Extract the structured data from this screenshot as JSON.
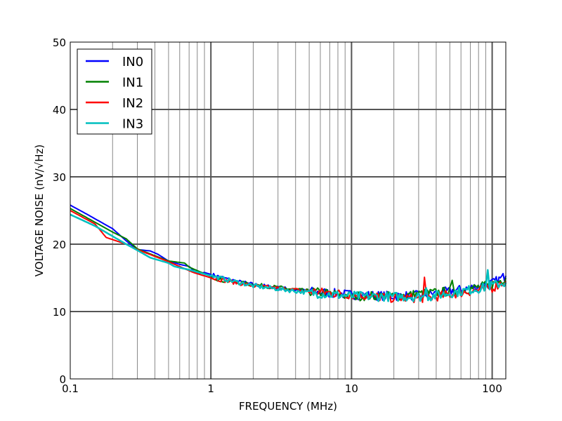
{
  "chart_data": {
    "type": "line",
    "title": "",
    "xlabel": "FREQUENCY (MHz)",
    "ylabel": "VOLTAGE NOISE (nV/√Hz)",
    "xscale": "log",
    "xlim": [
      0.1,
      125
    ],
    "ylim": [
      0,
      50
    ],
    "grid": true,
    "legend_position": "top-left",
    "x_ticks": [
      {
        "value": 0.1,
        "label": "0.1"
      },
      {
        "value": 1,
        "label": "1"
      },
      {
        "value": 10,
        "label": "10"
      },
      {
        "value": 100,
        "label": "100"
      }
    ],
    "y_ticks": [
      {
        "value": 0,
        "label": "0"
      },
      {
        "value": 10,
        "label": "10"
      },
      {
        "value": 20,
        "label": "20"
      },
      {
        "value": 30,
        "label": "30"
      },
      {
        "value": 40,
        "label": "40"
      },
      {
        "value": 50,
        "label": "50"
      }
    ],
    "series": [
      {
        "name": "IN0",
        "color": "#0000ff",
        "x": [
          0.1,
          0.13,
          0.2,
          0.25,
          0.3,
          0.37,
          0.42,
          0.5,
          0.6,
          0.7,
          0.8,
          0.9,
          1,
          1.5,
          2,
          3,
          5,
          10,
          20,
          30,
          50,
          70,
          100,
          125
        ],
        "y": [
          25.8,
          24.5,
          22.3,
          20.5,
          19.2,
          19.0,
          18.5,
          17.5,
          17.0,
          16.7,
          15.6,
          15.8,
          15.5,
          14.5,
          14.0,
          13.5,
          13.0,
          12.5,
          12.3,
          12.4,
          13.0,
          13.5,
          14.2,
          15.3
        ]
      },
      {
        "name": "IN1",
        "color": "#008000",
        "x": [
          0.1,
          0.2,
          0.25,
          0.3,
          0.5,
          0.65,
          0.7,
          1,
          1.2,
          2,
          5,
          10,
          20,
          50,
          52,
          55,
          100,
          125
        ],
        "y": [
          25.3,
          21.8,
          20.8,
          19.3,
          17.5,
          17.2,
          16.6,
          15.2,
          14.6,
          14.0,
          13.0,
          12.3,
          12.3,
          13.0,
          14.0,
          13.0,
          14.0,
          15.0
        ]
      },
      {
        "name": "IN2",
        "color": "#ff0000",
        "x": [
          0.1,
          0.15,
          0.18,
          0.25,
          0.3,
          0.5,
          0.75,
          1,
          2,
          5,
          10,
          20,
          32,
          33,
          34,
          100,
          125
        ],
        "y": [
          25.0,
          23.0,
          21.0,
          20.0,
          19.2,
          17.4,
          15.8,
          15.0,
          13.8,
          13.0,
          12.5,
          12.0,
          12.0,
          14.8,
          12.0,
          13.5,
          14.5
        ]
      },
      {
        "name": "IN3",
        "color": "#00bfbf",
        "x": [
          0.1,
          0.15,
          0.25,
          0.3,
          0.37,
          0.5,
          0.55,
          0.7,
          1,
          2,
          5,
          10,
          20,
          33,
          34,
          35,
          90,
          93,
          96,
          125
        ],
        "y": [
          24.4,
          22.7,
          20.0,
          19.1,
          18.0,
          17.2,
          16.7,
          16.2,
          15.3,
          13.8,
          12.8,
          12.3,
          12.2,
          12.2,
          14.0,
          12.2,
          13.6,
          16.0,
          13.8,
          14.3
        ]
      }
    ]
  }
}
